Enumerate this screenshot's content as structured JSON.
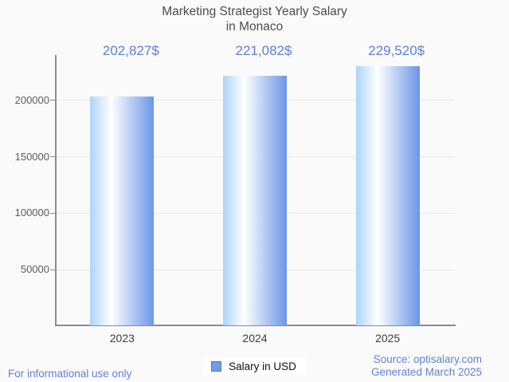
{
  "title": {
    "line1": "Marketing Strategist Yearly Salary",
    "line2": "in Monaco"
  },
  "chart_data": {
    "type": "bar",
    "title": "Marketing Strategist Yearly Salary in Monaco",
    "categories": [
      "2023",
      "2024",
      "2025"
    ],
    "values": [
      202827,
      221082,
      229520
    ],
    "value_labels": [
      "202,827$",
      "221,082$",
      "229,520$"
    ],
    "xlabel": "",
    "ylabel": "",
    "y_ticks": [
      50000,
      100000,
      150000,
      200000
    ],
    "ylim": [
      0,
      240000
    ],
    "grid": true,
    "legend_position": "bottom",
    "bar_gradient": [
      "#aed3f9",
      "#ffffff",
      "#6b96e7"
    ],
    "bar_gradient_highlight_stop": 33
  },
  "legend": {
    "label": "Salary in USD",
    "swatch_color": "#6d9eea",
    "swatch_border_color": "#54799f"
  },
  "footer": {
    "left": "For informational use only",
    "source": "Source: optisalary.com",
    "generated": "Generated March 2025"
  },
  "colors": {
    "accent_blue": "#5e80d5",
    "footer_blue": "#6282d8",
    "title_gray": "#4c4c4c",
    "axis_gray": "#8c8c8c",
    "gridline_gray": "#e8e8e8",
    "background": "#fafafa"
  }
}
